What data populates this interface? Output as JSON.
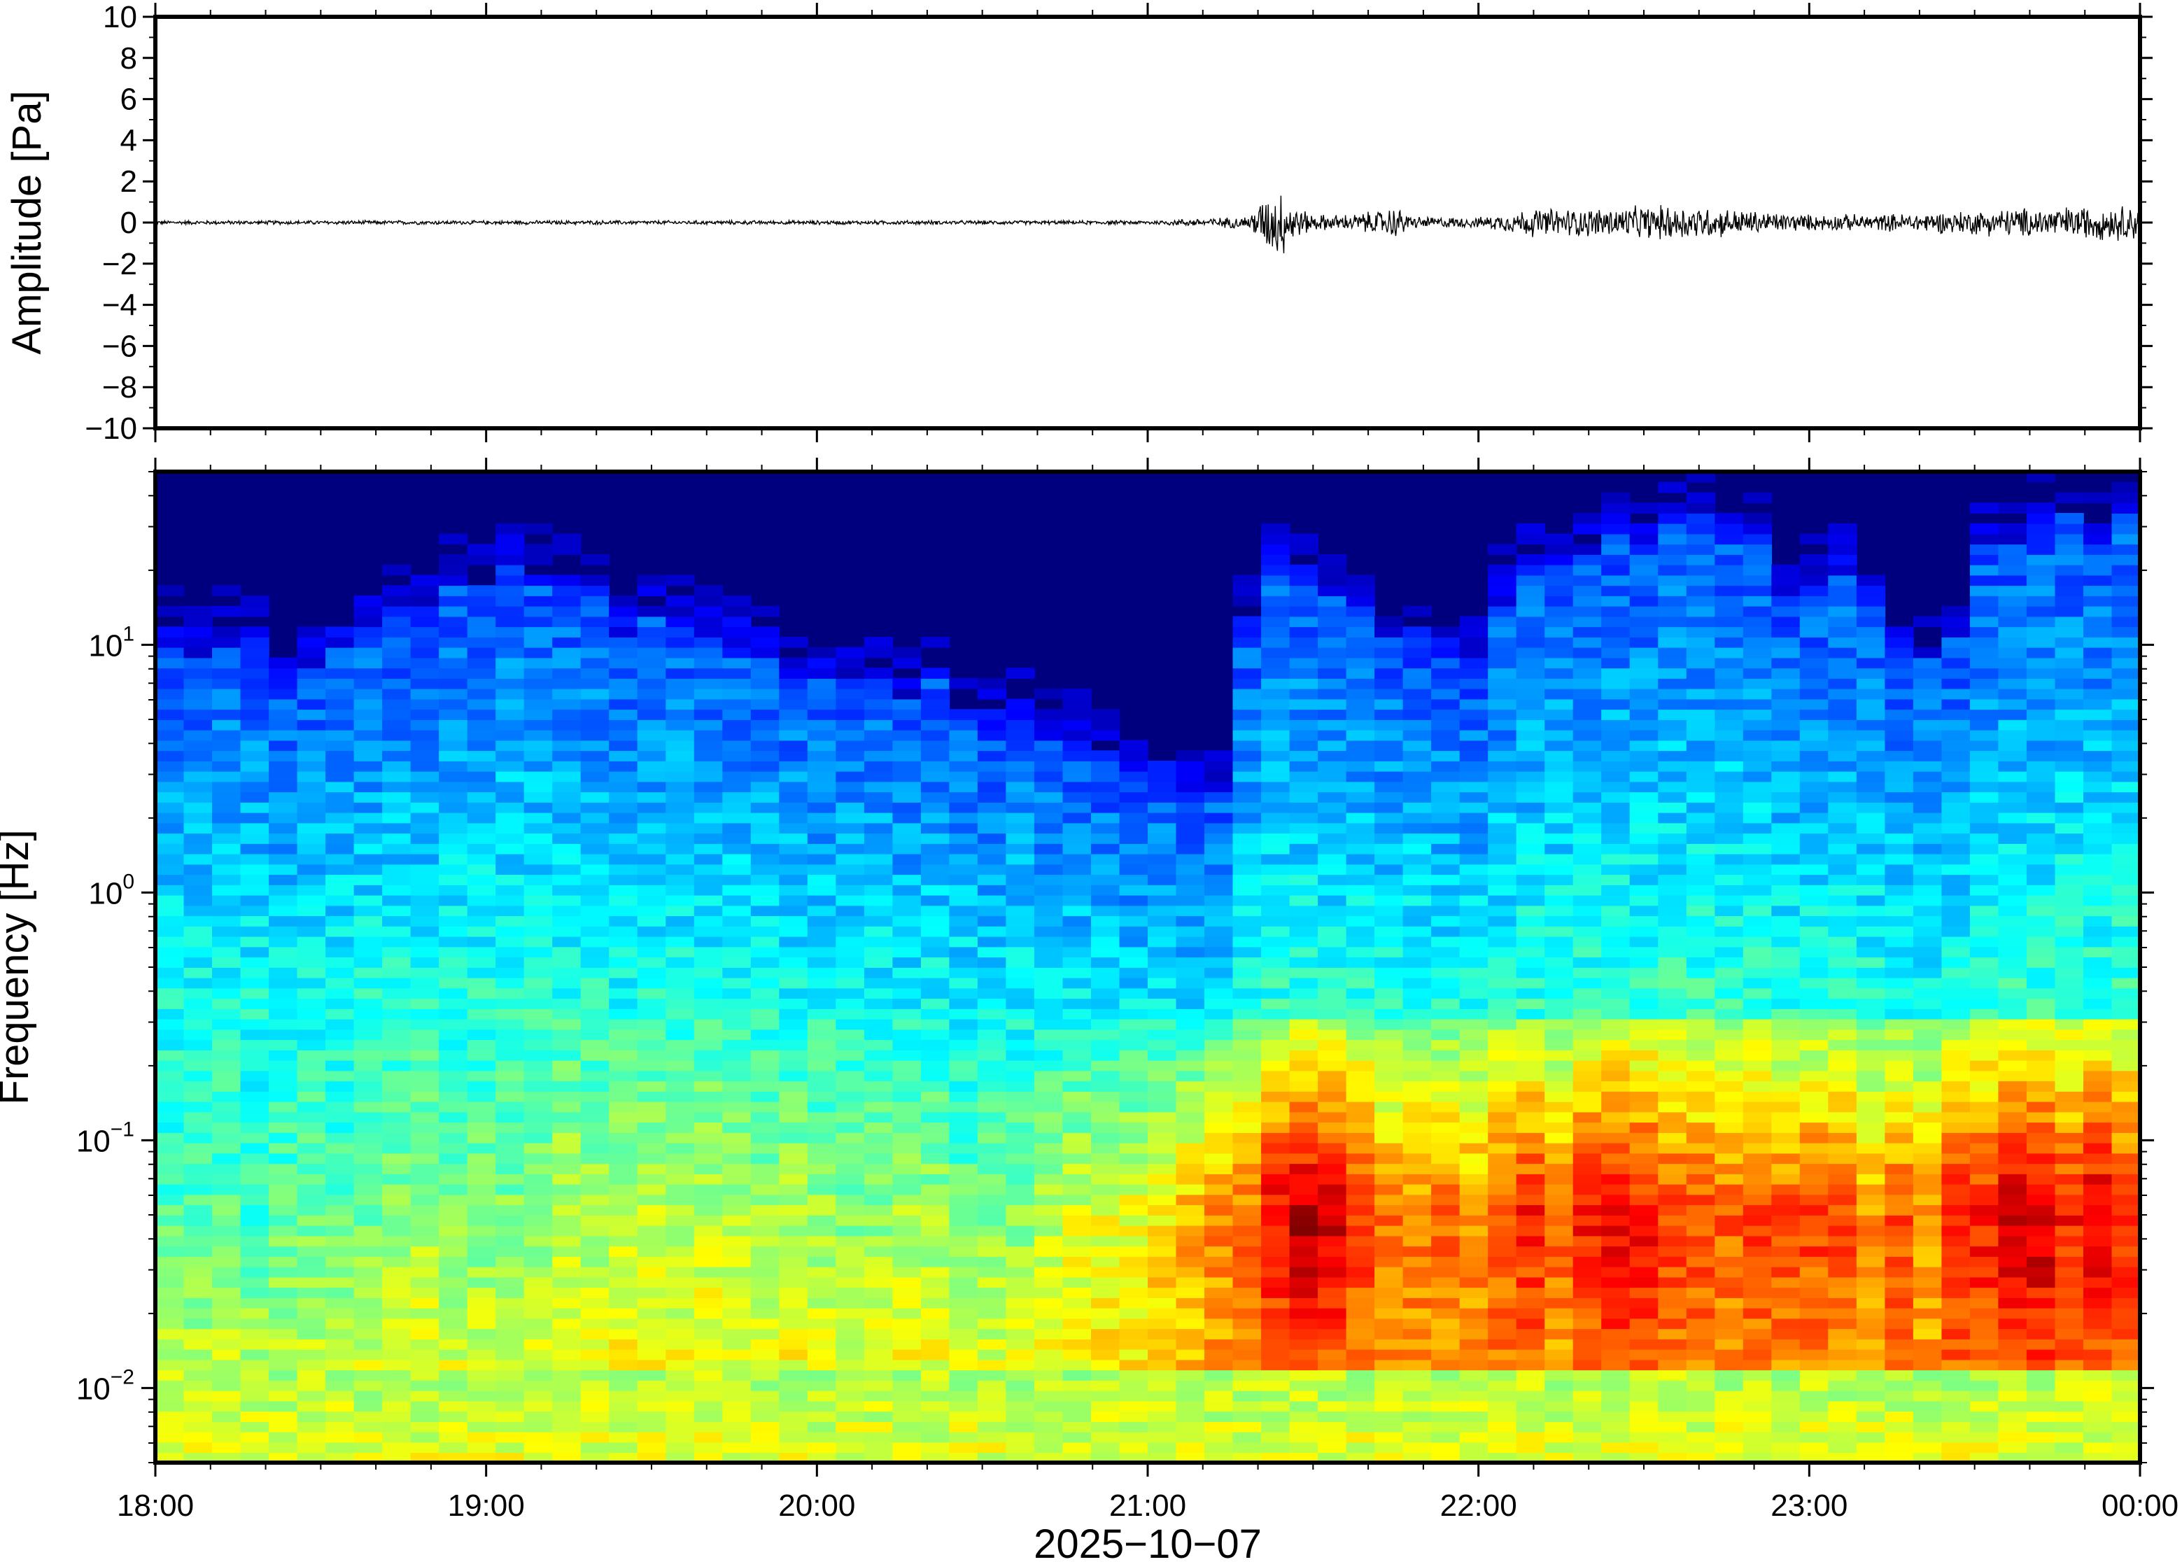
{
  "chart_data": [
    {
      "type": "line",
      "panel": "waveform",
      "ylabel": "Amplitude [Pa]",
      "ylim": [
        -10,
        10
      ],
      "yticks": [
        10,
        8,
        6,
        4,
        2,
        0,
        -2,
        -4,
        -6,
        -8,
        -10
      ],
      "ytick_labels": [
        "10",
        "8",
        "6",
        "4",
        "2",
        "0",
        "−2",
        "−4",
        "−6",
        "−8",
        "−10"
      ],
      "x_range_hours": [
        18,
        24
      ],
      "series": [
        {
          "hours": [
            18.0,
            19.0,
            20.0,
            21.0,
            21.3,
            21.35,
            21.4,
            21.45,
            21.5,
            21.6,
            21.7,
            21.75,
            21.8,
            22.0,
            22.1,
            22.15,
            22.3,
            22.5,
            22.6,
            22.75,
            22.9,
            23.0,
            23.2,
            23.35,
            23.5,
            23.6,
            23.8,
            24.0
          ],
          "envelope_pa": [
            0.1,
            0.1,
            0.1,
            0.1,
            0.3,
            1.2,
            1.8,
            0.8,
            0.4,
            0.4,
            0.6,
            0.8,
            0.3,
            0.25,
            0.5,
            0.7,
            0.7,
            0.8,
            0.9,
            0.7,
            0.5,
            0.4,
            0.4,
            0.5,
            0.6,
            0.7,
            0.8,
            0.9
          ]
        }
      ]
    },
    {
      "type": "heatmap",
      "panel": "spectrogram",
      "ylabel": "Frequency [Hz]",
      "yscale": "log",
      "ylim": [
        0.005,
        50
      ],
      "ytick_labels": [
        {
          "base": "10",
          "exp": "−2",
          "value": 0.01
        },
        {
          "base": "10",
          "exp": "−1",
          "value": 0.1
        },
        {
          "base": "10",
          "exp": "0",
          "value": 1
        },
        {
          "base": "10",
          "exp": "1",
          "value": 10
        }
      ],
      "colormap": "jet",
      "x_range_hours": [
        18,
        24
      ],
      "columns_hours_cutoff_hz": [
        [
          18.0,
          10
        ],
        [
          18.2,
          9
        ],
        [
          18.4,
          8
        ],
        [
          18.6,
          11
        ],
        [
          18.8,
          14
        ],
        [
          19.0,
          20
        ],
        [
          19.2,
          16
        ],
        [
          19.4,
          12
        ],
        [
          19.6,
          11
        ],
        [
          19.8,
          9
        ],
        [
          20.0,
          8
        ],
        [
          20.2,
          7
        ],
        [
          20.4,
          6
        ],
        [
          20.6,
          5
        ],
        [
          20.8,
          4
        ],
        [
          21.0,
          3
        ],
        [
          21.1,
          2.5
        ],
        [
          21.25,
          2.2
        ],
        [
          21.35,
          20
        ],
        [
          21.5,
          22
        ],
        [
          21.6,
          14
        ],
        [
          21.8,
          10
        ],
        [
          22.0,
          8
        ],
        [
          22.15,
          20
        ],
        [
          22.3,
          24
        ],
        [
          22.5,
          30
        ],
        [
          22.6,
          34
        ],
        [
          22.8,
          28
        ],
        [
          22.95,
          16
        ],
        [
          23.1,
          18
        ],
        [
          23.25,
          12
        ],
        [
          23.4,
          6
        ],
        [
          23.5,
          22
        ],
        [
          23.7,
          28
        ],
        [
          23.9,
          30
        ],
        [
          24.0,
          32
        ]
      ],
      "columns_hours_energy": [
        [
          18.0,
          0.3
        ],
        [
          18.5,
          0.35
        ],
        [
          19.0,
          0.4
        ],
        [
          19.5,
          0.45
        ],
        [
          20.0,
          0.45
        ],
        [
          20.5,
          0.4
        ],
        [
          21.0,
          0.55
        ],
        [
          21.3,
          0.8
        ],
        [
          21.45,
          0.95
        ],
        [
          21.6,
          0.85
        ],
        [
          21.8,
          0.75
        ],
        [
          22.0,
          0.7
        ],
        [
          22.2,
          0.8
        ],
        [
          22.5,
          0.85
        ],
        [
          22.8,
          0.8
        ],
        [
          23.0,
          0.75
        ],
        [
          23.3,
          0.75
        ],
        [
          23.5,
          0.85
        ],
        [
          24.0,
          0.9
        ]
      ]
    }
  ],
  "xaxis": {
    "tick_labels": [
      "18:00",
      "19:00",
      "20:00",
      "21:00",
      "22:00",
      "23:00",
      "00:00"
    ],
    "date_label": "2025−10−07"
  }
}
